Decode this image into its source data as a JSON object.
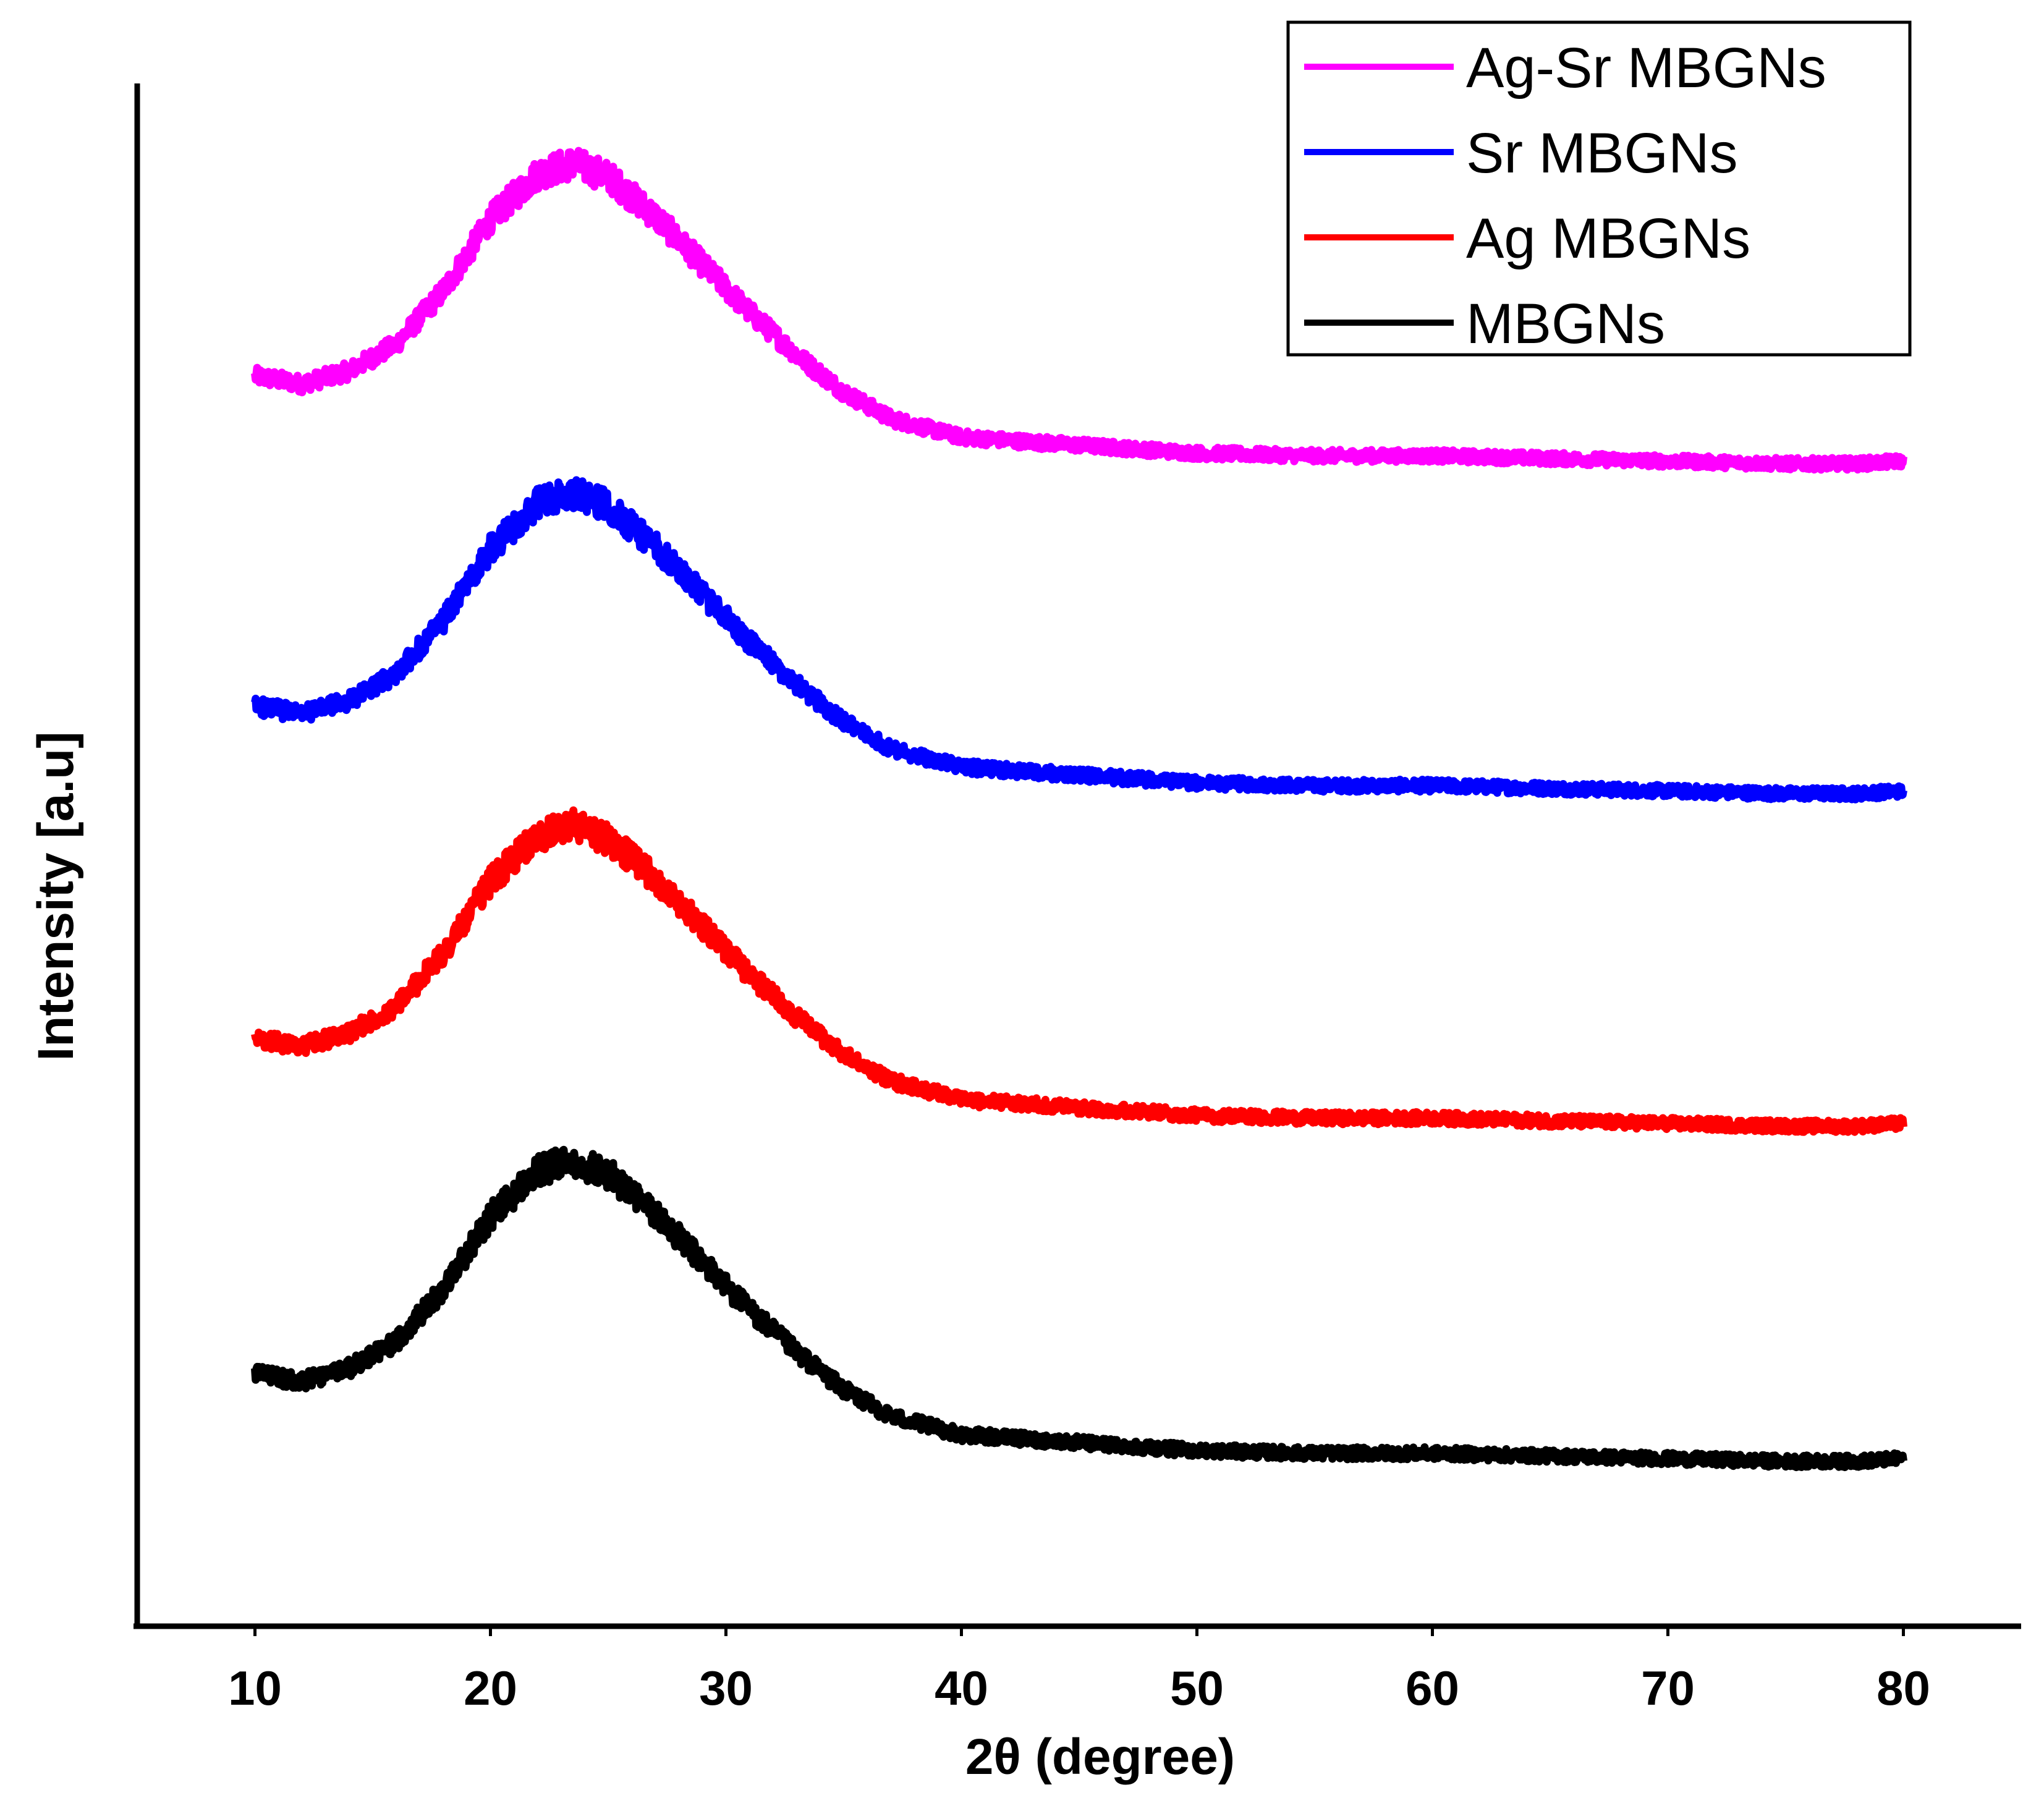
{
  "chart_data": {
    "type": "line",
    "title": "",
    "xlabel": "2θ (degree)",
    "ylabel": "Intensity [a.u]",
    "xlim": [
      5,
      85
    ],
    "ylim": [
      0,
      5.8
    ],
    "x_ticks": [
      10,
      20,
      30,
      40,
      50,
      60,
      70,
      80
    ],
    "x_tick_labels": [
      "10",
      "20",
      "30",
      "40",
      "50",
      "60",
      "70",
      "80"
    ],
    "y_ticks_shown": false,
    "grid": false,
    "legend_position": "top-right",
    "x": [
      10,
      12,
      14,
      16,
      18,
      20,
      22,
      23.5,
      25,
      27,
      29,
      31,
      33,
      35,
      37,
      40,
      45,
      50,
      55,
      60,
      65,
      70,
      75,
      78,
      80
    ],
    "series": [
      {
        "name": "Ag-Sr MBGNs",
        "color": "#ff00ff",
        "values": [
          4.7,
          4.67,
          4.72,
          4.82,
          5.02,
          5.29,
          5.46,
          5.5,
          5.45,
          5.3,
          5.12,
          4.94,
          4.78,
          4.64,
          4.54,
          4.47,
          4.44,
          4.41,
          4.4,
          4.4,
          4.39,
          4.38,
          4.37,
          4.37,
          4.38
        ]
      },
      {
        "name": "Sr MBGNs",
        "color": "#0000ff",
        "values": [
          3.46,
          3.43,
          3.48,
          3.58,
          3.78,
          4.05,
          4.22,
          4.26,
          4.21,
          4.06,
          3.88,
          3.7,
          3.54,
          3.4,
          3.3,
          3.23,
          3.2,
          3.17,
          3.16,
          3.16,
          3.15,
          3.14,
          3.13,
          3.13,
          3.14
        ]
      },
      {
        "name": "Ag MBGNs",
        "color": "#ff0000",
        "values": [
          2.21,
          2.18,
          2.23,
          2.33,
          2.53,
          2.8,
          2.97,
          3.01,
          2.96,
          2.81,
          2.63,
          2.45,
          2.29,
          2.15,
          2.05,
          1.98,
          1.95,
          1.92,
          1.91,
          1.91,
          1.9,
          1.89,
          1.88,
          1.88,
          1.89
        ]
      },
      {
        "name": "MBGNs",
        "color": "#000000",
        "values": [
          0.95,
          0.92,
          0.97,
          1.07,
          1.27,
          1.54,
          1.71,
          1.75,
          1.7,
          1.55,
          1.37,
          1.19,
          1.03,
          0.89,
          0.79,
          0.72,
          0.69,
          0.66,
          0.65,
          0.65,
          0.64,
          0.63,
          0.62,
          0.62,
          0.63
        ]
      }
    ]
  }
}
